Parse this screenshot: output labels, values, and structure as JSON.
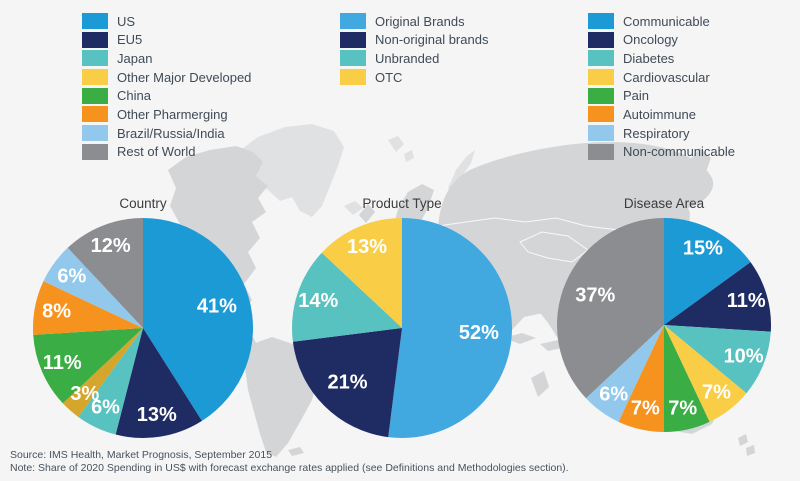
{
  "chart_data": [
    {
      "type": "pie",
      "title": "Country",
      "unit": "%",
      "radius": 110,
      "slices": [
        {
          "label": "US",
          "value": 41,
          "color": "#1C9AD6"
        },
        {
          "label": "EU5",
          "value": 13,
          "color": "#1F2B63"
        },
        {
          "label": "Japan",
          "value": 6,
          "color": "#57C2BF"
        },
        {
          "label": "Other Major Developed",
          "value": 3,
          "color": "#D4A62C",
          "legend_color": "#F9CE46"
        },
        {
          "label": "China",
          "value": 11,
          "color": "#3AAD44"
        },
        {
          "label": "Other Pharmerging",
          "value": 8,
          "color": "#F6921E"
        },
        {
          "label": "Brazil/Russia/India",
          "value": 6,
          "color": "#92C8EC"
        },
        {
          "label": "Rest of World",
          "value": 12,
          "color": "#8B8D90"
        }
      ]
    },
    {
      "type": "pie",
      "title": "Product Type",
      "unit": "%",
      "radius": 110,
      "slices": [
        {
          "label": "Original Brands",
          "value": 52,
          "color": "#41A9DF"
        },
        {
          "label": "Non-original brands",
          "value": 21,
          "color": "#1F2B63"
        },
        {
          "label": "Unbranded",
          "value": 14,
          "color": "#57C2BF"
        },
        {
          "label": "OTC",
          "value": 13,
          "color": "#F9CE46"
        }
      ]
    },
    {
      "type": "pie",
      "title": "Disease Area",
      "unit": "%",
      "radius": 107,
      "slices": [
        {
          "label": "Communicable",
          "value": 15,
          "color": "#1C9AD6"
        },
        {
          "label": "Oncology",
          "value": 11,
          "color": "#1F2B63"
        },
        {
          "label": "Diabetes",
          "value": 10,
          "color": "#57C2BF"
        },
        {
          "label": "Cardiovascular",
          "value": 7,
          "color": "#F9CE46"
        },
        {
          "label": "Pain",
          "value": 7,
          "color": "#3AAD44"
        },
        {
          "label": "Autoimmune",
          "value": 7,
          "color": "#F6921E"
        },
        {
          "label": "Respiratory",
          "value": 6,
          "color": "#92C8EC"
        },
        {
          "label": "Non-communicable",
          "value": 37,
          "color": "#8B8D90"
        }
      ]
    }
  ],
  "footer": {
    "source": "Source: IMS Health, Market Prognosis, September 2015",
    "note": "Note: Share of 2020 Spending in US$ with forecast exchange rates applied (see Definitions and Methodologies section)."
  }
}
